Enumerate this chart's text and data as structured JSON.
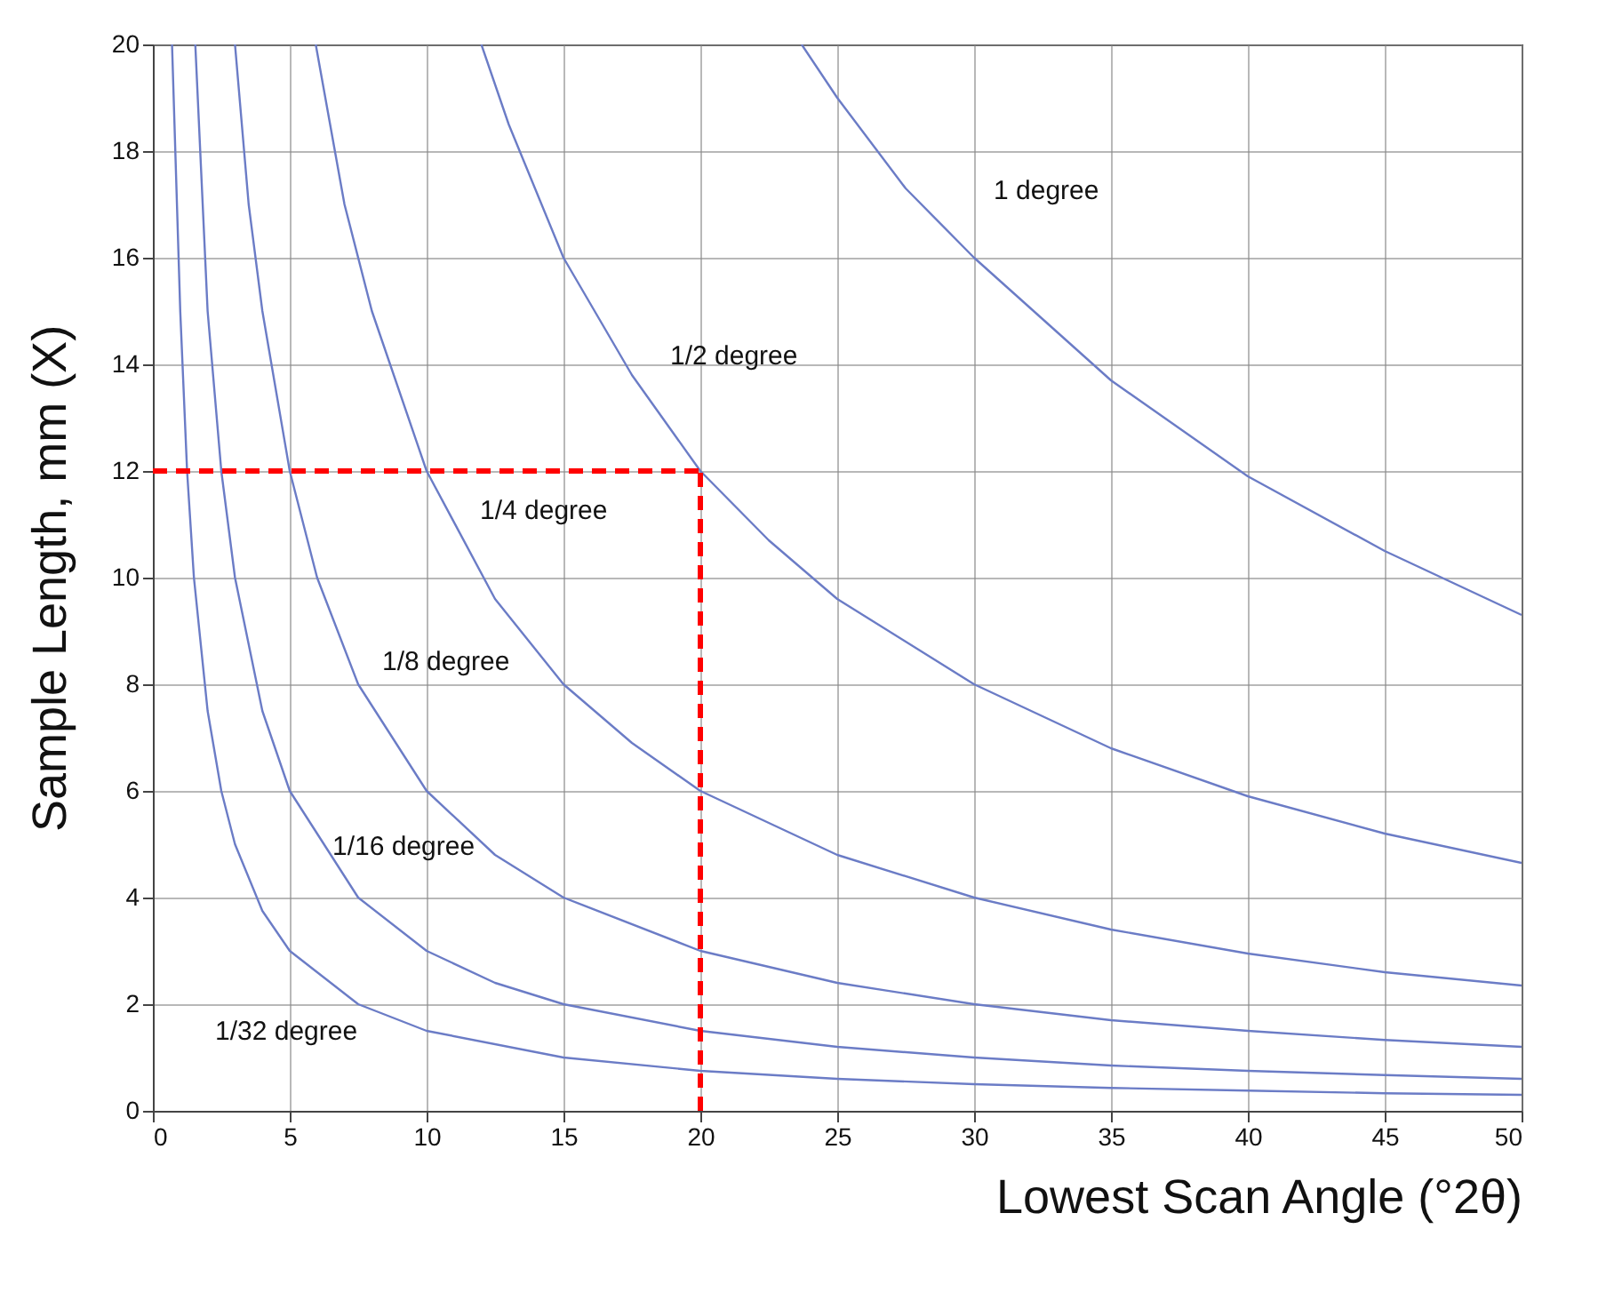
{
  "chart_data": {
    "type": "line",
    "xlabel": "Lowest Scan Angle (°2θ)",
    "ylabel": "Sample Length, mm (X)",
    "xlim": [
      0,
      50
    ],
    "xticks": [
      0,
      5,
      10,
      15,
      20,
      25,
      30,
      35,
      40,
      45,
      50
    ],
    "ylim": [
      0,
      20
    ],
    "yticks": [
      0,
      2,
      4,
      6,
      8,
      10,
      12,
      14,
      16,
      18,
      20
    ],
    "grid": true,
    "legend": false,
    "marker": "none",
    "line_style": "solid",
    "series": [
      {
        "name": "1 degree",
        "color": "#6b7cc6",
        "x": [
          23.7,
          25,
          27.5,
          30,
          35,
          40,
          45,
          50
        ],
        "values": [
          20,
          19,
          17.3,
          16,
          13.7,
          11.9,
          10.5,
          9.3
        ]
      },
      {
        "name": "1/2 degree",
        "color": "#6b7cc6",
        "x": [
          12,
          13,
          15,
          17.5,
          20,
          22.5,
          25,
          30,
          35,
          40,
          45,
          50
        ],
        "values": [
          20,
          18.5,
          16,
          13.8,
          12,
          10.7,
          9.6,
          8,
          6.8,
          5.9,
          5.2,
          4.65
        ]
      },
      {
        "name": "1/4 degree",
        "color": "#6b7cc6",
        "x": [
          5.95,
          7,
          8,
          10,
          12.5,
          15,
          17.5,
          20,
          25,
          30,
          35,
          40,
          45,
          50
        ],
        "values": [
          20,
          17,
          15,
          12,
          9.6,
          8,
          6.9,
          6,
          4.8,
          4,
          3.4,
          2.95,
          2.6,
          2.35
        ]
      },
      {
        "name": "1/8 degree",
        "color": "#6b7cc6",
        "x": [
          3,
          3.5,
          4,
          5,
          6,
          7.5,
          10,
          12.5,
          15,
          20,
          25,
          30,
          35,
          40,
          45,
          50
        ],
        "values": [
          20,
          17,
          15,
          12,
          10,
          8,
          6,
          4.8,
          4,
          3,
          2.4,
          2,
          1.7,
          1.5,
          1.33,
          1.2
        ]
      },
      {
        "name": "1/16 degree",
        "color": "#6b7cc6",
        "x": [
          1.55,
          2,
          2.5,
          3,
          4,
          5,
          7.5,
          10,
          12.5,
          15,
          20,
          25,
          30,
          35,
          40,
          45,
          50
        ],
        "values": [
          20,
          15,
          12,
          10,
          7.5,
          6,
          4,
          3,
          2.4,
          2,
          1.5,
          1.2,
          1,
          0.85,
          0.75,
          0.67,
          0.6
        ]
      },
      {
        "name": "1/32 degree",
        "color": "#6b7cc6",
        "x": [
          0.7,
          1,
          1.25,
          1.5,
          2,
          2.5,
          3,
          4,
          5,
          7.5,
          10,
          15,
          20,
          25,
          30,
          35,
          40,
          45,
          50
        ],
        "values": [
          20,
          15,
          12,
          10,
          7.5,
          6,
          5,
          3.75,
          3,
          2,
          1.5,
          1,
          0.75,
          0.6,
          0.5,
          0.43,
          0.38,
          0.33,
          0.3
        ]
      }
    ],
    "ref_lines": [
      {
        "axis": "y",
        "value": 12,
        "color": "#ff0000",
        "line_style": "dashed"
      },
      {
        "axis": "x",
        "value": 20,
        "color": "#ff0000",
        "line_style": "dashed"
      }
    ]
  }
}
